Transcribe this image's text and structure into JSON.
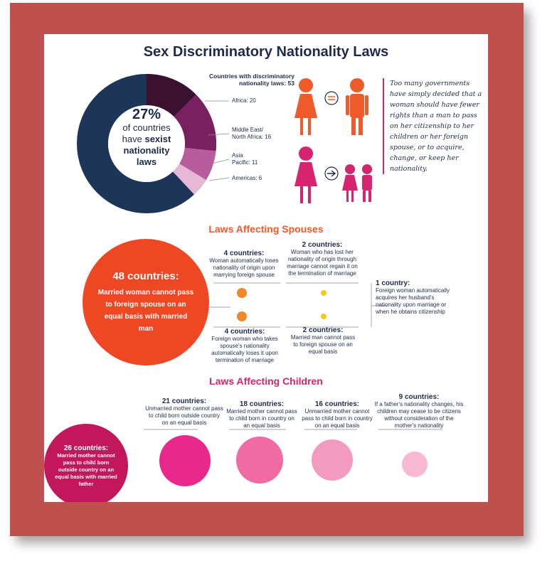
{
  "title": "Sex Discriminatory Nationality Laws",
  "donut": {
    "header_line1": "Countries with discriminatory",
    "header_line2": "nationality laws: 53",
    "center_pct": "27%",
    "center_line1": "of countries",
    "center_line2_a": "have ",
    "center_line2_b": "sexist",
    "center_line3": "nationality",
    "center_line4": "laws",
    "legend": {
      "africa": "Africa: 20",
      "mena1": "Middle East/",
      "mena2": "North Africa: 16",
      "asia1": "Asia",
      "asia2": "Pacific:  11",
      "americas": "Americas: 6"
    },
    "colors": {
      "base": "#1d3557",
      "africa": "#3a1230",
      "mena": "#7a2060",
      "asia": "#b85c9e",
      "americas": "#e6b8d6"
    }
  },
  "quote": "Too many governments have simply decided that a woman should have fewer rights than a man to pass on her citizenship to her children or her foreign spouse, or to acquire, change, or keep her nationality.",
  "spouses": {
    "title": "Laws Affecting Spouses",
    "big_count": "48 countries:",
    "big_text": "Married woman cannot pass to foreign spouse on an equal basis with married man",
    "item1_count": "4 countries:",
    "item1_text": "Woman automatically loses nationality of origin upon marrying foreign spouse",
    "item2_count": "2 countries:",
    "item2_text": "Woman who has lost her nationality of origin through marriage cannot regain it on the termination of marriage",
    "item3_count": "4 countries:",
    "item3_text": "Foreign woman who takes spouse's nationality automatically loses it upon termination of marriage",
    "item4_count": "2 countries:",
    "item4_text": "Married man cannot pass to foreign spouse on an equal basis",
    "item5_count": "1 country:",
    "item5_text": "Foreign woman automatically acquires her husband's nationality upon marriage or when he obtains citizenship"
  },
  "children": {
    "title": "Laws Affecting Children",
    "c1_count": "26 countries:",
    "c1_text": "Married mother cannot pass to child born outside country on an equal basis with married father",
    "c2_count": "21 countries:",
    "c2_text": "Unmarried mother cannot pass to child born outside country on an equal basis",
    "c3_count": "18 countries:",
    "c3_text": "Married mother cannot pass to child born in country on an equal basis",
    "c4_count": "16 countries:",
    "c4_text": "Unmarried mother cannot pass to child born in country on an equal basis",
    "c5_count": "9 countries:",
    "c5_text": "If a father's nationality changes, his children may cease to be citizens without consideration of the mother's nationality"
  }
}
